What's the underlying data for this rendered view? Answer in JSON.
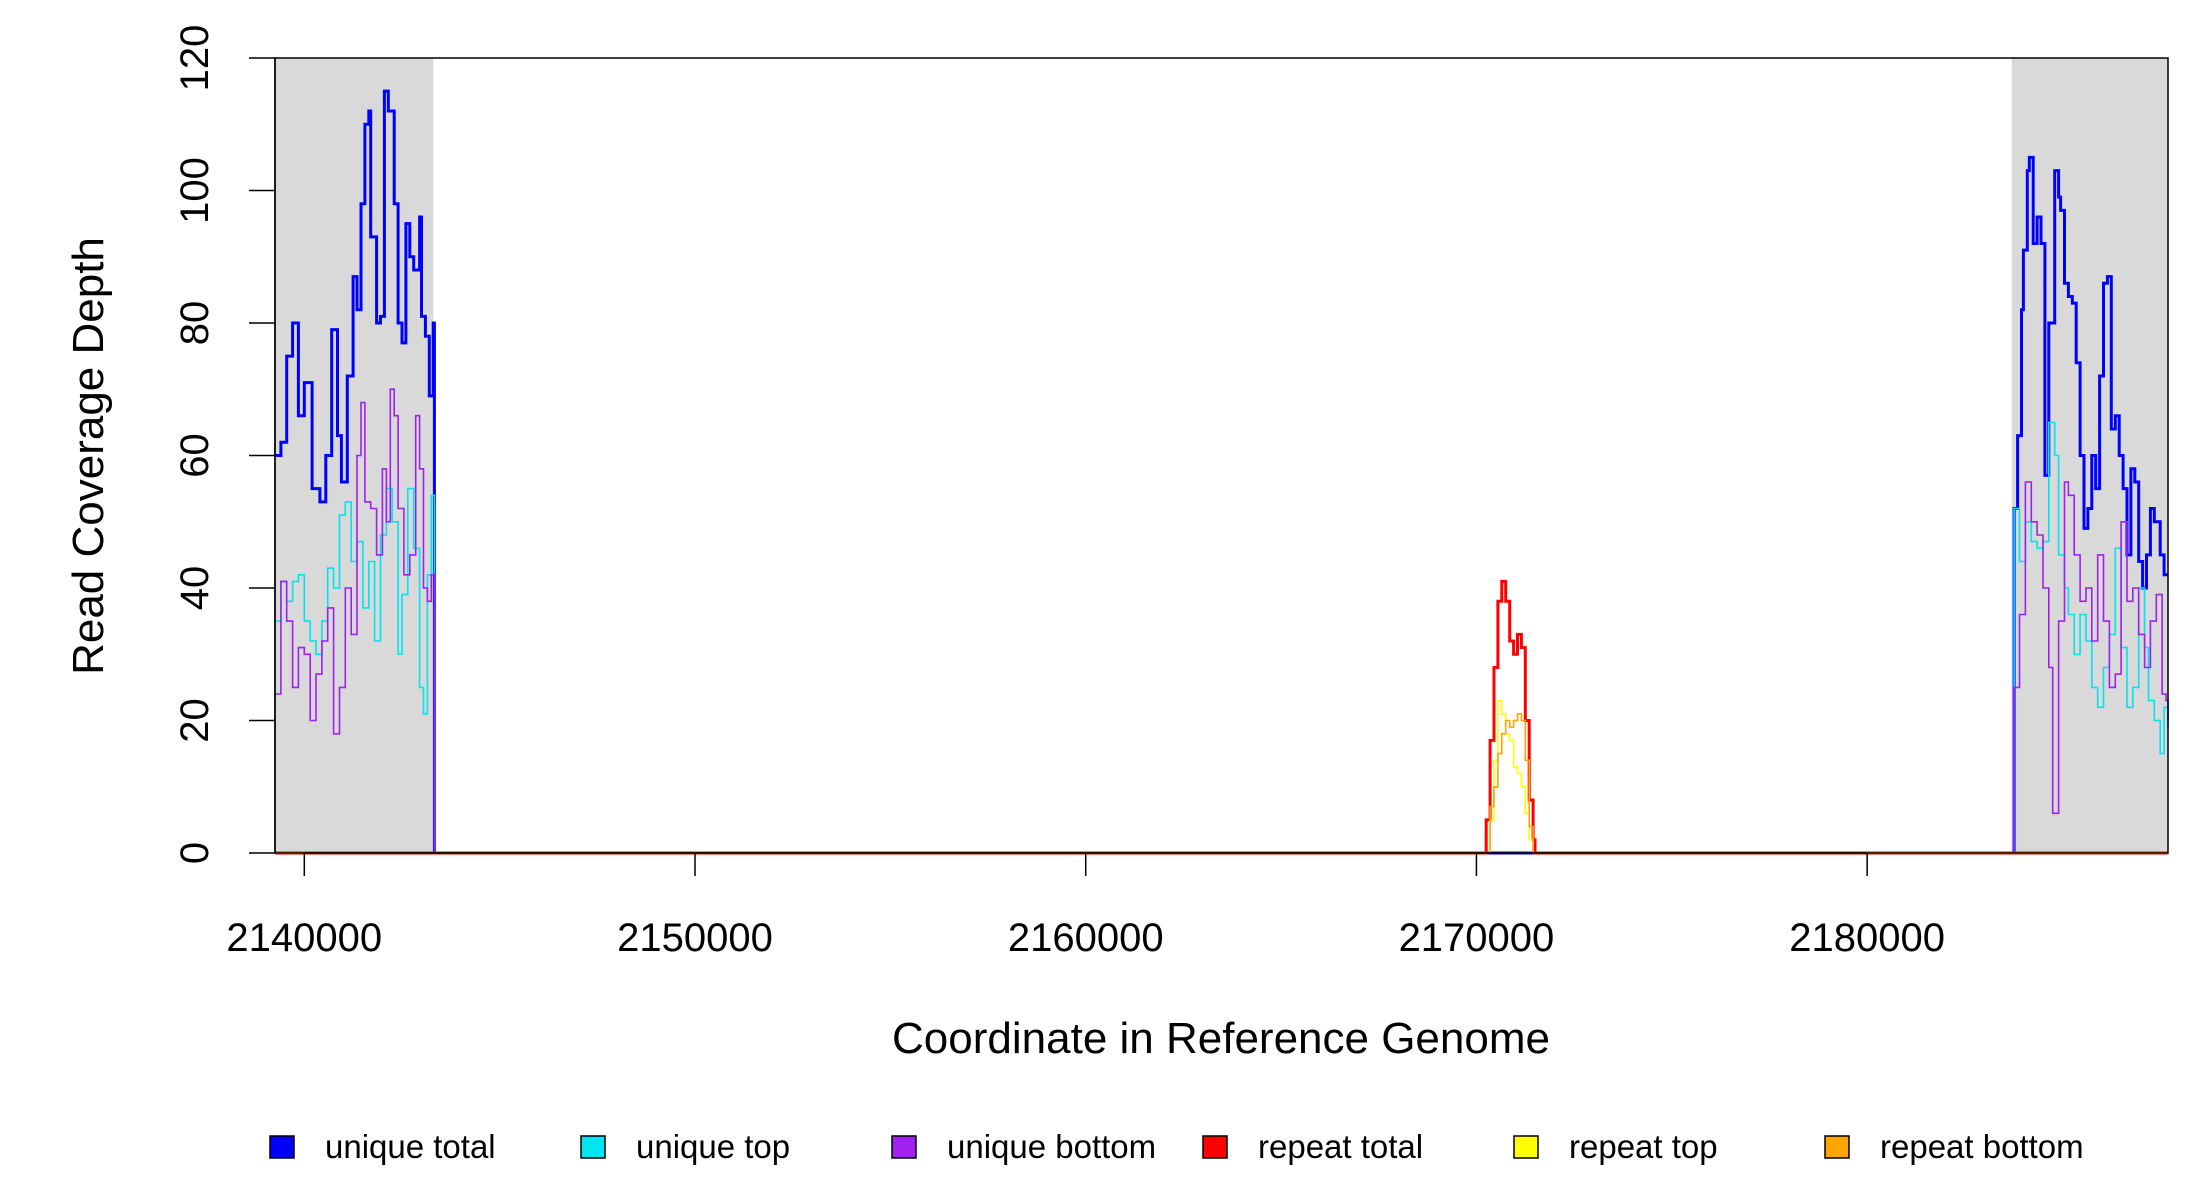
{
  "chart_data": {
    "type": "line",
    "xlabel": "Coordinate in Reference Genome",
    "ylabel": "Read Coverage Depth",
    "xlim": [
      2139250,
      2187700
    ],
    "ylim": [
      0,
      120
    ],
    "x_ticks": [
      2140000,
      2150000,
      2160000,
      2170000,
      2180000
    ],
    "y_ticks": [
      0,
      20,
      40,
      60,
      80,
      100,
      120
    ],
    "shaded_regions": [
      [
        2139250,
        2143300
      ],
      [
        2183700,
        2187700
      ]
    ],
    "legend_placement": "bottom",
    "series": [
      {
        "name": "unique total",
        "color": "#0000ff",
        "width": 3,
        "points": [
          [
            2139250,
            60
          ],
          [
            2139400,
            62
          ],
          [
            2139550,
            75
          ],
          [
            2139700,
            80
          ],
          [
            2139850,
            66
          ],
          [
            2140000,
            71
          ],
          [
            2140200,
            55
          ],
          [
            2140400,
            53
          ],
          [
            2140550,
            60
          ],
          [
            2140700,
            79
          ],
          [
            2140850,
            63
          ],
          [
            2140950,
            56
          ],
          [
            2141100,
            72
          ],
          [
            2141250,
            87
          ],
          [
            2141350,
            82
          ],
          [
            2141450,
            98
          ],
          [
            2141550,
            110
          ],
          [
            2141650,
            112
          ],
          [
            2141700,
            93
          ],
          [
            2141850,
            80
          ],
          [
            2141950,
            81
          ],
          [
            2142050,
            115
          ],
          [
            2142150,
            112
          ],
          [
            2142300,
            98
          ],
          [
            2142400,
            80
          ],
          [
            2142500,
            77
          ],
          [
            2142600,
            95
          ],
          [
            2142700,
            90
          ],
          [
            2142800,
            88
          ],
          [
            2142950,
            96
          ],
          [
            2143000,
            81
          ],
          [
            2143100,
            78
          ],
          [
            2143200,
            69
          ],
          [
            2143300,
            80
          ],
          [
            2143330,
            0
          ],
          [
            2183720,
            0
          ],
          [
            2183760,
            52
          ],
          [
            2183850,
            63
          ],
          [
            2183950,
            82
          ],
          [
            2184000,
            91
          ],
          [
            2184100,
            103
          ],
          [
            2184150,
            105
          ],
          [
            2184250,
            92
          ],
          [
            2184350,
            96
          ],
          [
            2184450,
            92
          ],
          [
            2184550,
            57
          ],
          [
            2184650,
            80
          ],
          [
            2184800,
            103
          ],
          [
            2184900,
            99
          ],
          [
            2184950,
            97
          ],
          [
            2185050,
            86
          ],
          [
            2185150,
            84
          ],
          [
            2185250,
            83
          ],
          [
            2185350,
            74
          ],
          [
            2185450,
            60
          ],
          [
            2185550,
            49
          ],
          [
            2185650,
            52
          ],
          [
            2185750,
            60
          ],
          [
            2185850,
            55
          ],
          [
            2185950,
            72
          ],
          [
            2186050,
            86
          ],
          [
            2186150,
            87
          ],
          [
            2186250,
            64
          ],
          [
            2186350,
            66
          ],
          [
            2186450,
            60
          ],
          [
            2186550,
            55
          ],
          [
            2186650,
            45
          ],
          [
            2186750,
            58
          ],
          [
            2186850,
            56
          ],
          [
            2186950,
            44
          ],
          [
            2187050,
            40
          ],
          [
            2187150,
            45
          ],
          [
            2187250,
            52
          ],
          [
            2187350,
            50
          ],
          [
            2187500,
            45
          ],
          [
            2187600,
            42
          ],
          [
            2187700,
            42
          ]
        ]
      },
      {
        "name": "unique top",
        "color": "#00e5ee",
        "width": 1.6,
        "points": [
          [
            2139250,
            35
          ],
          [
            2139400,
            41
          ],
          [
            2139550,
            38
          ],
          [
            2139700,
            41
          ],
          [
            2139850,
            42
          ],
          [
            2140000,
            35
          ],
          [
            2140150,
            32
          ],
          [
            2140300,
            30
          ],
          [
            2140450,
            35
          ],
          [
            2140600,
            43
          ],
          [
            2140750,
            40
          ],
          [
            2140900,
            51
          ],
          [
            2141050,
            53
          ],
          [
            2141200,
            44
          ],
          [
            2141350,
            47
          ],
          [
            2141500,
            37
          ],
          [
            2141650,
            44
          ],
          [
            2141800,
            32
          ],
          [
            2141950,
            48
          ],
          [
            2142100,
            55
          ],
          [
            2142250,
            50
          ],
          [
            2142400,
            30
          ],
          [
            2142500,
            39
          ],
          [
            2142650,
            55
          ],
          [
            2142800,
            46
          ],
          [
            2142950,
            25
          ],
          [
            2143050,
            21
          ],
          [
            2143150,
            42
          ],
          [
            2143250,
            54
          ],
          [
            2143330,
            0
          ],
          [
            2183720,
            0
          ],
          [
            2183760,
            52
          ],
          [
            2183900,
            44
          ],
          [
            2184050,
            50
          ],
          [
            2184200,
            47
          ],
          [
            2184350,
            46
          ],
          [
            2184500,
            47
          ],
          [
            2184650,
            65
          ],
          [
            2184800,
            60
          ],
          [
            2184900,
            45
          ],
          [
            2185050,
            40
          ],
          [
            2185150,
            36
          ],
          [
            2185300,
            30
          ],
          [
            2185450,
            36
          ],
          [
            2185600,
            32
          ],
          [
            2185750,
            25
          ],
          [
            2185900,
            22
          ],
          [
            2186050,
            28
          ],
          [
            2186200,
            33
          ],
          [
            2186350,
            46
          ],
          [
            2186500,
            31
          ],
          [
            2186650,
            22
          ],
          [
            2186800,
            25
          ],
          [
            2186950,
            40
          ],
          [
            2187100,
            31
          ],
          [
            2187200,
            23
          ],
          [
            2187350,
            20
          ],
          [
            2187500,
            15
          ],
          [
            2187600,
            22
          ],
          [
            2187700,
            19
          ]
        ]
      },
      {
        "name": "unique bottom",
        "color": "#a020f0",
        "width": 1.6,
        "points": [
          [
            2139250,
            24
          ],
          [
            2139400,
            41
          ],
          [
            2139550,
            35
          ],
          [
            2139700,
            25
          ],
          [
            2139850,
            31
          ],
          [
            2140000,
            30
          ],
          [
            2140150,
            20
          ],
          [
            2140300,
            27
          ],
          [
            2140450,
            32
          ],
          [
            2140600,
            37
          ],
          [
            2140750,
            18
          ],
          [
            2140900,
            25
          ],
          [
            2141050,
            40
          ],
          [
            2141200,
            33
          ],
          [
            2141350,
            60
          ],
          [
            2141450,
            68
          ],
          [
            2141550,
            53
          ],
          [
            2141700,
            52
          ],
          [
            2141850,
            45
          ],
          [
            2142000,
            58
          ],
          [
            2142100,
            50
          ],
          [
            2142200,
            70
          ],
          [
            2142300,
            66
          ],
          [
            2142400,
            52
          ],
          [
            2142550,
            42
          ],
          [
            2142700,
            45
          ],
          [
            2142850,
            66
          ],
          [
            2142950,
            58
          ],
          [
            2143050,
            40
          ],
          [
            2143150,
            38
          ],
          [
            2143250,
            42
          ],
          [
            2143330,
            0
          ],
          [
            2183720,
            0
          ],
          [
            2183760,
            25
          ],
          [
            2183900,
            36
          ],
          [
            2184050,
            56
          ],
          [
            2184200,
            50
          ],
          [
            2184350,
            48
          ],
          [
            2184500,
            40
          ],
          [
            2184650,
            28
          ],
          [
            2184750,
            6
          ],
          [
            2184900,
            35
          ],
          [
            2185050,
            56
          ],
          [
            2185150,
            54
          ],
          [
            2185300,
            45
          ],
          [
            2185450,
            38
          ],
          [
            2185600,
            40
          ],
          [
            2185750,
            32
          ],
          [
            2185900,
            45
          ],
          [
            2186050,
            35
          ],
          [
            2186200,
            25
          ],
          [
            2186350,
            27
          ],
          [
            2186500,
            50
          ],
          [
            2186650,
            38
          ],
          [
            2186800,
            40
          ],
          [
            2186950,
            33
          ],
          [
            2187100,
            28
          ],
          [
            2187250,
            35
          ],
          [
            2187400,
            39
          ],
          [
            2187550,
            24
          ],
          [
            2187650,
            23
          ],
          [
            2187700,
            20
          ]
        ]
      },
      {
        "name": "repeat total",
        "color": "#ff0000",
        "width": 3,
        "points": [
          [
            2139250,
            0
          ],
          [
            2170200,
            0
          ],
          [
            2170250,
            5
          ],
          [
            2170350,
            17
          ],
          [
            2170450,
            28
          ],
          [
            2170550,
            38
          ],
          [
            2170650,
            41
          ],
          [
            2170750,
            38
          ],
          [
            2170850,
            32
          ],
          [
            2170950,
            30
          ],
          [
            2171050,
            33
          ],
          [
            2171150,
            31
          ],
          [
            2171250,
            20
          ],
          [
            2171350,
            8
          ],
          [
            2171450,
            2
          ],
          [
            2171500,
            0
          ],
          [
            2187700,
            0
          ]
        ]
      },
      {
        "name": "repeat top",
        "color": "#ffff00",
        "width": 1.6,
        "points": [
          [
            2139250,
            0
          ],
          [
            2170250,
            0
          ],
          [
            2170350,
            5
          ],
          [
            2170450,
            14
          ],
          [
            2170550,
            23
          ],
          [
            2170650,
            21
          ],
          [
            2170750,
            18
          ],
          [
            2170850,
            17
          ],
          [
            2170950,
            13
          ],
          [
            2171050,
            12
          ],
          [
            2171150,
            10
          ],
          [
            2171250,
            6
          ],
          [
            2171350,
            2
          ],
          [
            2171450,
            0
          ],
          [
            2187700,
            0
          ]
        ]
      },
      {
        "name": "repeat bottom",
        "color": "#ffa500",
        "width": 1.6,
        "points": [
          [
            2139250,
            0
          ],
          [
            2170250,
            0
          ],
          [
            2170350,
            7
          ],
          [
            2170450,
            10
          ],
          [
            2170550,
            15
          ],
          [
            2170650,
            18
          ],
          [
            2170750,
            20
          ],
          [
            2170850,
            19
          ],
          [
            2170950,
            20
          ],
          [
            2171050,
            21
          ],
          [
            2171150,
            20
          ],
          [
            2171250,
            14
          ],
          [
            2171350,
            4
          ],
          [
            2171450,
            0
          ],
          [
            2187700,
            0
          ]
        ]
      }
    ]
  }
}
